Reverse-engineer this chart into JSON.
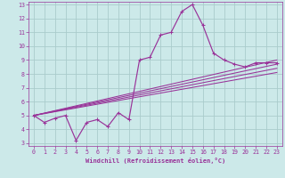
{
  "xlabel": "Windchill (Refroidissement éolien,°C)",
  "xlim": [
    -0.5,
    23.5
  ],
  "ylim": [
    2.8,
    13.2
  ],
  "xticks": [
    0,
    1,
    2,
    3,
    4,
    5,
    6,
    7,
    8,
    9,
    10,
    11,
    12,
    13,
    14,
    15,
    16,
    17,
    18,
    19,
    20,
    21,
    22,
    23
  ],
  "yticks": [
    3,
    4,
    5,
    6,
    7,
    8,
    9,
    10,
    11,
    12,
    13
  ],
  "bg_color": "#cce9e9",
  "line_color": "#993399",
  "grid_color": "#aacccc",
  "main_x": [
    0,
    1,
    2,
    3,
    4,
    5,
    6,
    7,
    8,
    9,
    10,
    11,
    12,
    13,
    14,
    15,
    16,
    17,
    18,
    19,
    20,
    21,
    22,
    23
  ],
  "main_y": [
    5.0,
    4.5,
    4.8,
    5.0,
    3.2,
    4.5,
    4.7,
    4.2,
    5.2,
    4.7,
    9.0,
    9.2,
    10.8,
    11.0,
    12.5,
    13.0,
    11.5,
    9.5,
    9.0,
    8.7,
    8.5,
    8.8,
    8.8,
    8.8
  ],
  "fan_lines": [
    {
      "x": [
        0,
        23
      ],
      "y": [
        5.0,
        9.0
      ]
    },
    {
      "x": [
        0,
        23
      ],
      "y": [
        5.0,
        8.7
      ]
    },
    {
      "x": [
        0,
        23
      ],
      "y": [
        5.0,
        8.4
      ]
    },
    {
      "x": [
        0,
        23
      ],
      "y": [
        5.0,
        8.1
      ]
    }
  ]
}
